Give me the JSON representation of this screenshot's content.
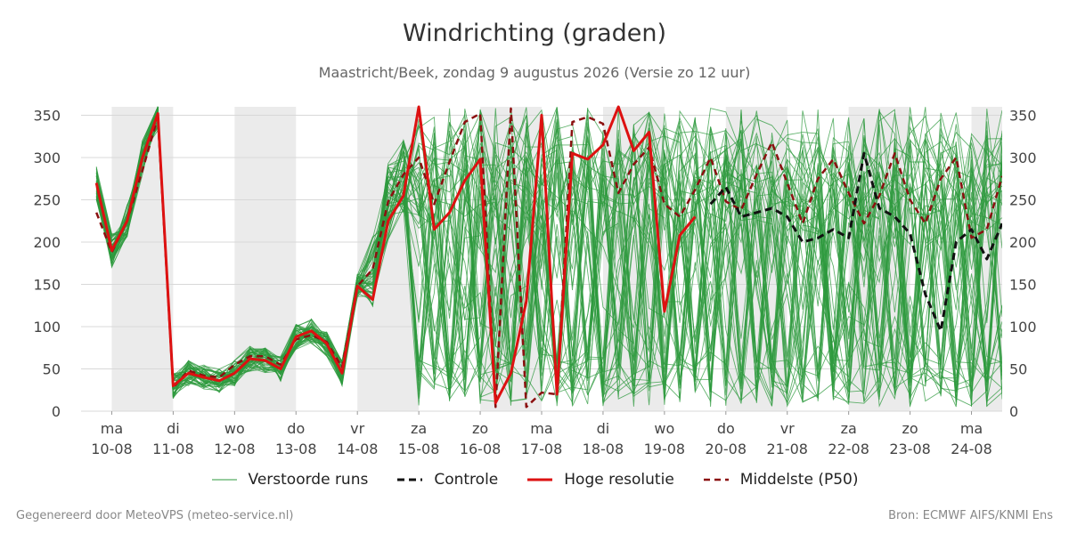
{
  "chart_data": {
    "type": "line",
    "title": "Windrichting (graden)",
    "subtitle": "Maastricht/Beek, zondag  9 augustus 2026 (Versie zo 12 uur)",
    "ylim": [
      0,
      360
    ],
    "yticks": [
      0,
      50,
      100,
      150,
      200,
      250,
      300,
      350
    ],
    "grid": true,
    "xlim": [
      -0.5,
      14.5
    ],
    "x_ticks": [
      {
        "day": "ma",
        "date": "10-08"
      },
      {
        "day": "di",
        "date": "11-08"
      },
      {
        "day": "wo",
        "date": "12-08"
      },
      {
        "day": "do",
        "date": "13-08"
      },
      {
        "day": "vr",
        "date": "14-08"
      },
      {
        "day": "za",
        "date": "15-08"
      },
      {
        "day": "zo",
        "date": "16-08"
      },
      {
        "day": "ma",
        "date": "17-08"
      },
      {
        "day": "di",
        "date": "18-08"
      },
      {
        "day": "wo",
        "date": "19-08"
      },
      {
        "day": "do",
        "date": "20-08"
      },
      {
        "day": "vr",
        "date": "21-08"
      },
      {
        "day": "za",
        "date": "22-08"
      },
      {
        "day": "zo",
        "date": "23-08"
      },
      {
        "day": "ma",
        "date": "24-08"
      }
    ],
    "shaded_bands": [
      [
        0,
        1
      ],
      [
        2,
        3
      ],
      [
        4,
        5
      ],
      [
        6,
        7
      ],
      [
        8,
        9
      ],
      [
        10,
        11
      ],
      [
        12,
        13
      ],
      [
        14,
        14.5
      ]
    ],
    "legend_position": "bottom",
    "series": [
      {
        "name": "Hoge resolutie",
        "color": "#dd1111",
        "dash": "solid",
        "x": [
          -0.25,
          0,
          0.25,
          0.5,
          0.75,
          1,
          1.25,
          1.5,
          1.75,
          2,
          2.25,
          2.5,
          2.75,
          3,
          3.25,
          3.5,
          3.75,
          4,
          4.25,
          4.5,
          4.75,
          5,
          5.25,
          5.5,
          5.75,
          6,
          6.25,
          6.5,
          6.75,
          7,
          7.25,
          7.5,
          7.75,
          8,
          8.25,
          8.5,
          8.75,
          9,
          9.25,
          9.5
        ],
        "values": [
          270,
          190,
          225,
          300,
          352,
          30,
          45,
          40,
          36,
          45,
          62,
          60,
          50,
          88,
          95,
          80,
          45,
          148,
          132,
          225,
          255,
          360,
          215,
          235,
          273,
          298,
          10,
          45,
          130,
          350,
          20,
          305,
          298,
          315,
          360,
          308,
          330,
          118,
          208,
          230
        ]
      },
      {
        "name": "Middelste (P50)",
        "color": "#8b1010",
        "dash": "dashed",
        "x": [
          -0.25,
          0,
          0.25,
          0.5,
          0.75,
          1,
          1.25,
          1.5,
          1.75,
          2,
          2.25,
          2.5,
          2.75,
          3,
          3.25,
          3.5,
          3.75,
          4,
          4.25,
          4.5,
          4.75,
          5,
          5.25,
          5.5,
          5.75,
          6,
          6.25,
          6.5,
          6.75,
          7,
          7.25,
          7.5,
          7.75,
          8,
          8.25,
          8.5,
          8.75,
          9,
          9.25,
          9.5,
          9.75,
          10,
          10.25,
          10.5,
          10.75,
          11,
          11.25,
          11.5,
          11.75,
          12,
          12.25,
          12.5,
          12.75,
          13,
          13.25,
          13.5,
          13.75,
          14,
          14.25,
          14.5
        ],
        "values": [
          235,
          188,
          225,
          285,
          348,
          28,
          48,
          42,
          40,
          55,
          65,
          65,
          55,
          85,
          90,
          82,
          52,
          148,
          168,
          248,
          280,
          300,
          245,
          295,
          342,
          352,
          5,
          358,
          5,
          22,
          20,
          342,
          348,
          340,
          258,
          292,
          312,
          245,
          230,
          262,
          300,
          248,
          238,
          280,
          318,
          270,
          222,
          275,
          298,
          258,
          222,
          255,
          305,
          250,
          222,
          275,
          300,
          205,
          215,
          278
        ]
      },
      {
        "name": "Controle",
        "color": "#111111",
        "dash": "dashed",
        "x": [
          9.75,
          10,
          10.25,
          10.5,
          10.75,
          11,
          11.25,
          11.5,
          11.75,
          12,
          12.25,
          12.5,
          12.75,
          13,
          13.25,
          13.5,
          13.75,
          14,
          14.25,
          14.5
        ],
        "values": [
          245,
          265,
          230,
          235,
          240,
          230,
          200,
          205,
          215,
          205,
          305,
          240,
          230,
          210,
          138,
          95,
          200,
          215,
          180,
          222
        ]
      }
    ],
    "ensemble": {
      "name": "Verstoorde runs",
      "color": "#2e9a3e",
      "member_count": 50
    }
  },
  "legend": [
    {
      "label": "Verstoorde runs"
    },
    {
      "label": "Controle"
    },
    {
      "label": "Hoge resolutie"
    },
    {
      "label": "Middelste (P50)"
    }
  ],
  "footer": {
    "left": "Gegenereerd door MeteoVPS (meteo-service.nl)",
    "right": "Bron: ECMWF AIFS/KNMI Ens"
  }
}
